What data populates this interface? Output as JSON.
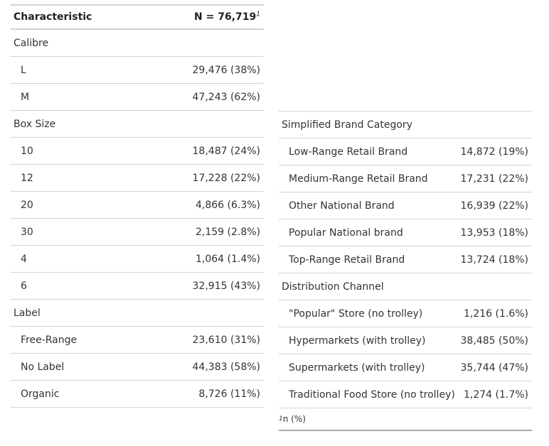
{
  "left_table": {
    "header": {
      "characteristic": "Characteristic",
      "n": "N = 76,719",
      "footnote_mark": "1"
    },
    "rows": [
      {
        "type": "group",
        "label": "Calibre",
        "value": ""
      },
      {
        "type": "item",
        "label": "L",
        "value": "29,476 (38%)"
      },
      {
        "type": "item",
        "label": "M",
        "value": "47,243 (62%)"
      },
      {
        "type": "group",
        "label": "Box Size",
        "value": ""
      },
      {
        "type": "item",
        "label": "10",
        "value": "18,487 (24%)"
      },
      {
        "type": "item",
        "label": "12",
        "value": "17,228 (22%)"
      },
      {
        "type": "item",
        "label": "20",
        "value": "4,866 (6.3%)"
      },
      {
        "type": "item",
        "label": "30",
        "value": "2,159 (2.8%)"
      },
      {
        "type": "item",
        "label": "4",
        "value": "1,064 (1.4%)"
      },
      {
        "type": "item",
        "label": "6",
        "value": "32,915 (43%)"
      },
      {
        "type": "group",
        "label": "Label",
        "value": ""
      },
      {
        "type": "item",
        "label": "Free-Range",
        "value": "23,610 (31%)"
      },
      {
        "type": "item",
        "label": "No Label",
        "value": "44,383 (58%)"
      },
      {
        "type": "item",
        "label": "Organic",
        "value": "8,726 (11%)"
      }
    ]
  },
  "right_table": {
    "rows": [
      {
        "type": "group",
        "label": "Simplified Brand Category",
        "value": ""
      },
      {
        "type": "item",
        "label": "Low-Range Retail Brand",
        "value": "14,872 (19%)"
      },
      {
        "type": "item",
        "label": "Medium-Range Retail Brand",
        "value": "17,231 (22%)"
      },
      {
        "type": "item",
        "label": "Other National Brand",
        "value": "16,939 (22%)"
      },
      {
        "type": "item",
        "label": "Popular National brand",
        "value": "13,953 (18%)"
      },
      {
        "type": "item",
        "label": "Top-Range Retail Brand",
        "value": "13,724 (18%)"
      },
      {
        "type": "group",
        "label": "Distribution Channel",
        "value": ""
      },
      {
        "type": "item",
        "label": "\"Popular\" Store (no trolley)",
        "value": "1,216 (1.6%)"
      },
      {
        "type": "item",
        "label": "Hypermarkets (with trolley)",
        "value": "38,485 (50%)"
      },
      {
        "type": "item",
        "label": "Supermarkets (with trolley)",
        "value": "35,744 (47%)"
      },
      {
        "type": "item",
        "label": "Traditional Food Store (no trolley)",
        "value": "1,274 (1.7%)"
      }
    ],
    "footnote": {
      "mark": "1",
      "text": "n (%)"
    }
  }
}
